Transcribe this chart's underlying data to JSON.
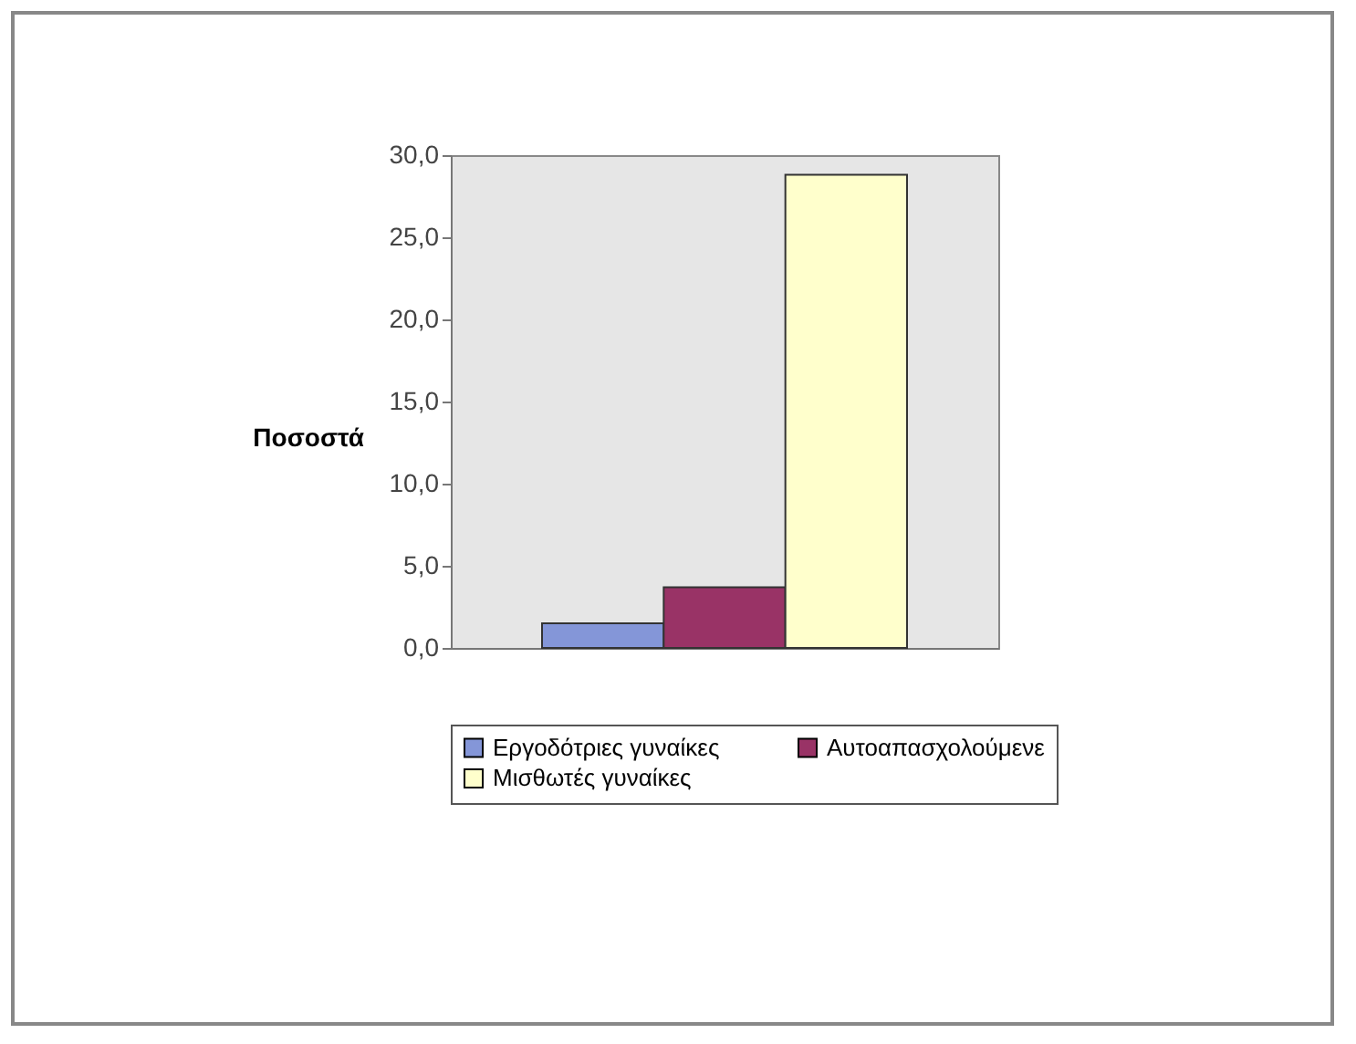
{
  "chart_data": {
    "type": "bar",
    "ylabel": "Ποσοστά",
    "categories": [
      null
    ],
    "series": [
      {
        "name": "Εργοδότριες γυναίκες",
        "color": "#8496d8",
        "values": [
          1.5
        ]
      },
      {
        "name": "Αυτοαπασχολούμενε",
        "color": "#993366",
        "values": [
          3.7
        ]
      },
      {
        "name": "Μισθωτές γυναίκες",
        "color": "#ffffcc",
        "values": [
          28.8
        ]
      }
    ],
    "ylim": [
      0,
      30
    ],
    "yticks": [
      {
        "value": 0,
        "label": "0,0"
      },
      {
        "value": 5,
        "label": "5,0"
      },
      {
        "value": 10,
        "label": "10,0"
      },
      {
        "value": 15,
        "label": "15,0"
      },
      {
        "value": 20,
        "label": "20,0"
      },
      {
        "value": 25,
        "label": "25,0"
      },
      {
        "value": 30,
        "label": "30,0"
      }
    ],
    "legend": "bottom"
  }
}
